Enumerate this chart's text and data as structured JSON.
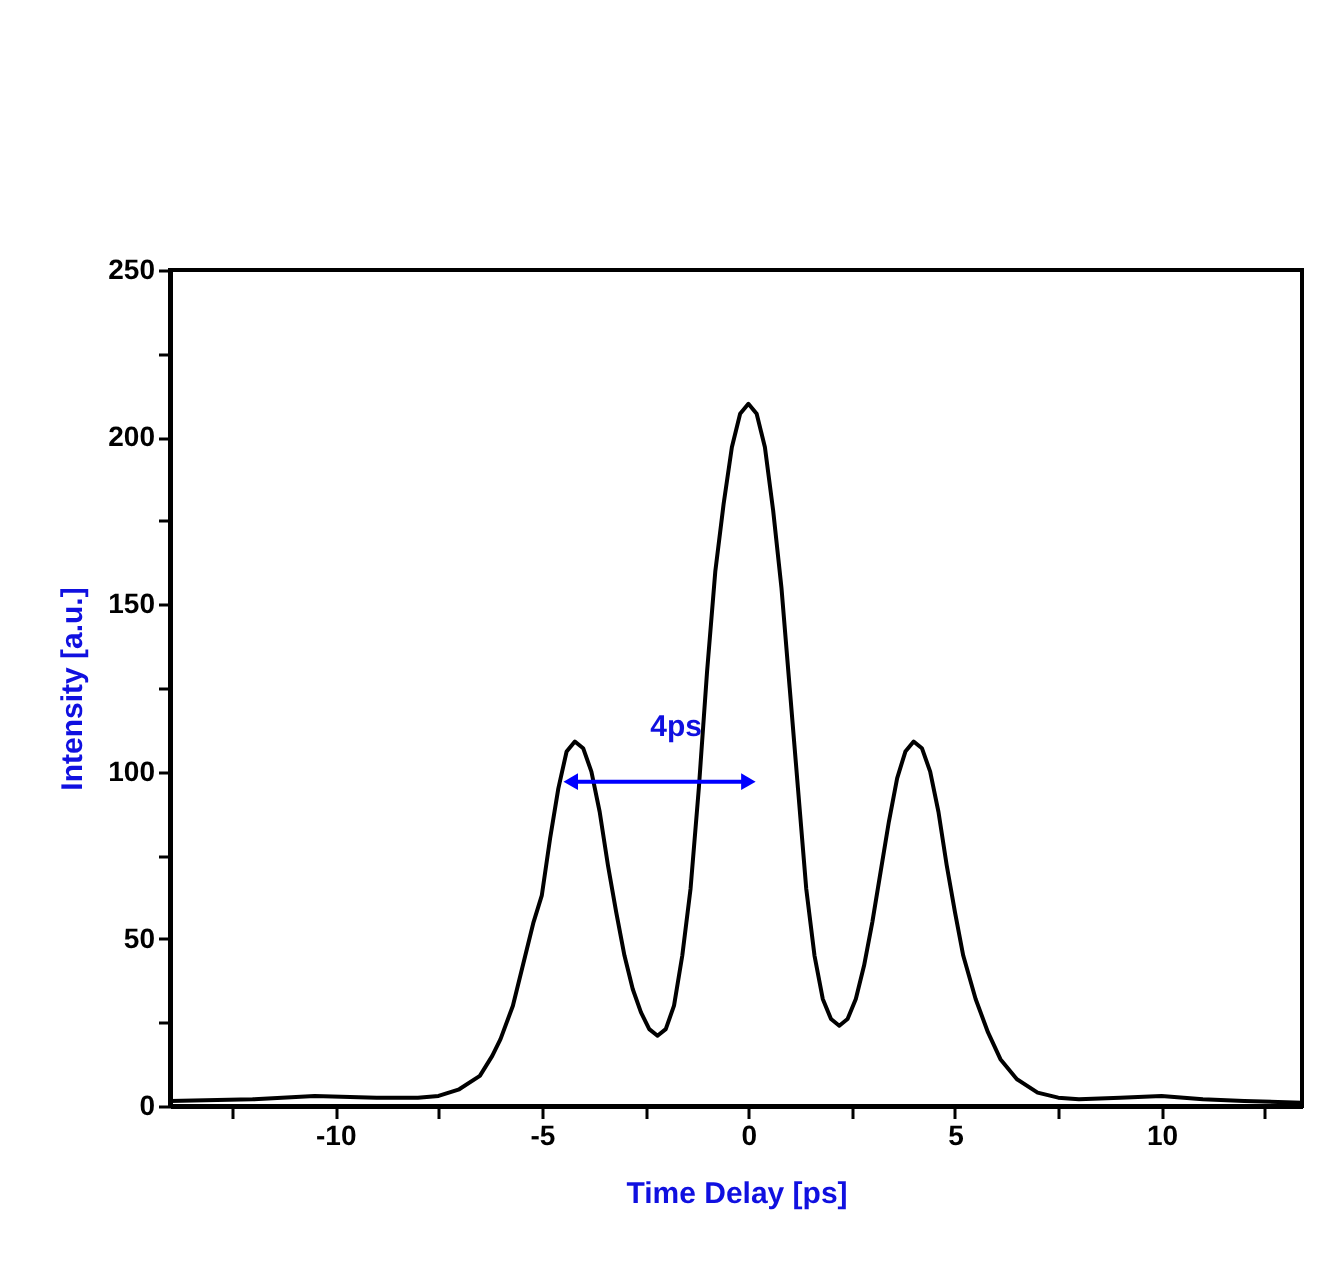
{
  "chart_data": {
    "type": "line",
    "xlabel": "Time Delay [ps]",
    "ylabel": "Intensity [a.u.]",
    "xlim": [
      -14,
      13.4
    ],
    "ylim": [
      0,
      250
    ],
    "xticks": [
      {
        "value": -12.5,
        "label": null
      },
      -10,
      {
        "value": -7.5,
        "label": null
      },
      -5,
      {
        "value": -2.5,
        "label": null
      },
      0,
      {
        "value": 2.5,
        "label": null
      },
      5,
      {
        "value": 7.5,
        "label": null
      },
      10,
      {
        "value": 12.5,
        "label": null
      }
    ],
    "yticks": [
      0,
      {
        "value": 25,
        "label": null
      },
      50,
      {
        "value": 75,
        "label": null
      },
      100,
      {
        "value": 125,
        "label": null
      },
      150,
      {
        "value": 175,
        "label": null
      },
      200,
      {
        "value": 225,
        "label": null
      },
      250
    ],
    "grid": false,
    "marker": "none",
    "line_style": "solid",
    "series": [
      {
        "color": "#000000",
        "x": [
          -14,
          -12,
          -10.5,
          -9,
          -8,
          -7.5,
          -7,
          -6.5,
          -6.2,
          -6,
          -5.7,
          -5.4,
          -5.2,
          -5,
          -4.8,
          -4.6,
          -4.4,
          -4.2,
          -4.0,
          -3.8,
          -3.6,
          -3.4,
          -3.2,
          -3.0,
          -2.8,
          -2.6,
          -2.4,
          -2.2,
          -2.0,
          -1.8,
          -1.6,
          -1.4,
          -1.2,
          -1.0,
          -0.8,
          -0.6,
          -0.4,
          -0.2,
          0,
          0.2,
          0.4,
          0.6,
          0.8,
          1.0,
          1.2,
          1.4,
          1.6,
          1.8,
          2.0,
          2.2,
          2.4,
          2.6,
          2.8,
          3.0,
          3.2,
          3.4,
          3.6,
          3.8,
          4.0,
          4.2,
          4.4,
          4.6,
          4.8,
          5.0,
          5.2,
          5.5,
          5.8,
          6.1,
          6.5,
          7,
          7.5,
          8,
          9,
          10,
          11,
          12,
          13.4
        ],
        "values": [
          1.5,
          2,
          3,
          2.5,
          2.5,
          3,
          5,
          9,
          15,
          20,
          30,
          45,
          55,
          63,
          80,
          95,
          106,
          109,
          107,
          100,
          88,
          72,
          58,
          45,
          35,
          28,
          23,
          21,
          23,
          30,
          45,
          65,
          95,
          130,
          160,
          180,
          197,
          207,
          210,
          207,
          197,
          178,
          155,
          125,
          95,
          65,
          45,
          32,
          26,
          24,
          26,
          32,
          42,
          55,
          70,
          85,
          98,
          106,
          109,
          107,
          100,
          88,
          72,
          58,
          45,
          32,
          22,
          14,
          8,
          4,
          2.5,
          2,
          2.5,
          3,
          2,
          1.5,
          1
        ]
      },
      {
        "color": "#0000ff",
        "x": [
          -4.3,
          0
        ],
        "values": [
          97,
          97
        ],
        "marker": "triangle"
      }
    ],
    "annotations": [
      "4ps"
    ]
  }
}
